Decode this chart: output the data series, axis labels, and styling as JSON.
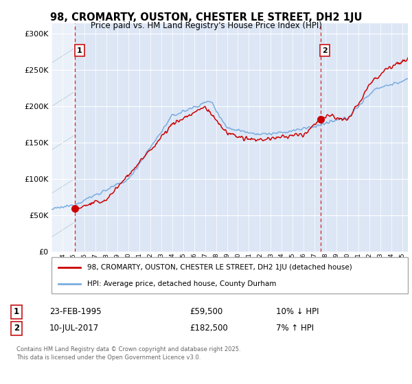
{
  "title": "98, CROMARTY, OUSTON, CHESTER LE STREET, DH2 1JU",
  "subtitle": "Price paid vs. HM Land Registry's House Price Index (HPI)",
  "ytick_vals": [
    0,
    50000,
    100000,
    150000,
    200000,
    250000,
    300000
  ],
  "ylim": [
    0,
    315000
  ],
  "xlim_start": 1993.0,
  "xlim_end": 2025.5,
  "marker1_x": 1995.15,
  "marker1_y": 59500,
  "marker2_x": 2017.52,
  "marker2_y": 182500,
  "legend_line1": "98, CROMARTY, OUSTON, CHESTER LE STREET, DH2 1JU (detached house)",
  "legend_line2": "HPI: Average price, detached house, County Durham",
  "annot1_label": "1",
  "annot1_date": "23-FEB-1995",
  "annot1_price": "£59,500",
  "annot1_hpi": "10% ↓ HPI",
  "annot2_label": "2",
  "annot2_date": "10-JUL-2017",
  "annot2_price": "£182,500",
  "annot2_hpi": "7% ↑ HPI",
  "footer": "Contains HM Land Registry data © Crown copyright and database right 2025.\nThis data is licensed under the Open Government Licence v3.0.",
  "red_color": "#cc0000",
  "blue_color": "#7aace0",
  "plot_bg": "#dce6f5",
  "hatch_color": "#b8c8de"
}
